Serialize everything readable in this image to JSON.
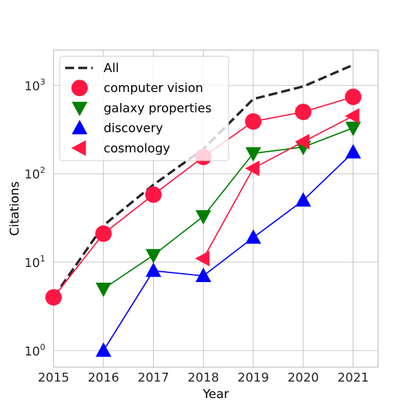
{
  "chart_data": {
    "type": "line",
    "xlabel": "Year",
    "ylabel": "Citations",
    "y_scale": "log",
    "x_ticks": [
      2015,
      2016,
      2017,
      2018,
      2019,
      2020,
      2021
    ],
    "y_ticks": [
      {
        "value": 1,
        "base": "10",
        "exp": "0"
      },
      {
        "value": 10,
        "base": "10",
        "exp": "1"
      },
      {
        "value": 100,
        "base": "10",
        "exp": "2"
      },
      {
        "value": 1000,
        "base": "10",
        "exp": "3"
      }
    ],
    "xlim": [
      2015,
      2021.5
    ],
    "ylim": [
      0.65,
      2500
    ],
    "grid": true,
    "legend_position": "top-left",
    "series": [
      {
        "name": "All",
        "color": "#262626",
        "marker": "none",
        "dashed": true,
        "x": [
          2015,
          2016,
          2017,
          2018,
          2019,
          2020,
          2021
        ],
        "y": [
          4,
          26,
          75,
          190,
          700,
          970,
          1700
        ]
      },
      {
        "name": "computer vision",
        "color": "#ff1744",
        "marker": "circle",
        "dashed": false,
        "x": [
          2015,
          2016,
          2017,
          2018,
          2019,
          2020,
          2021
        ],
        "y": [
          4,
          21,
          58,
          155,
          390,
          500,
          740
        ]
      },
      {
        "name": "galaxy properties",
        "color": "#008000",
        "marker": "triangle-down",
        "dashed": false,
        "x": [
          2016,
          2017,
          2018,
          2019,
          2020,
          2021
        ],
        "y": [
          5,
          12,
          33,
          170,
          200,
          330
        ]
      },
      {
        "name": "discovery",
        "color": "#0000ff",
        "marker": "triangle-up",
        "dashed": false,
        "x": [
          2016,
          2017,
          2018,
          2019,
          2020,
          2021
        ],
        "y": [
          1,
          8,
          7,
          19,
          50,
          175
        ]
      },
      {
        "name": "cosmology",
        "color": "#ff1744",
        "marker": "triangle-left",
        "dashed": false,
        "x": [
          2018,
          2019,
          2020,
          2021
        ],
        "y": [
          11,
          115,
          230,
          450
        ]
      }
    ]
  }
}
